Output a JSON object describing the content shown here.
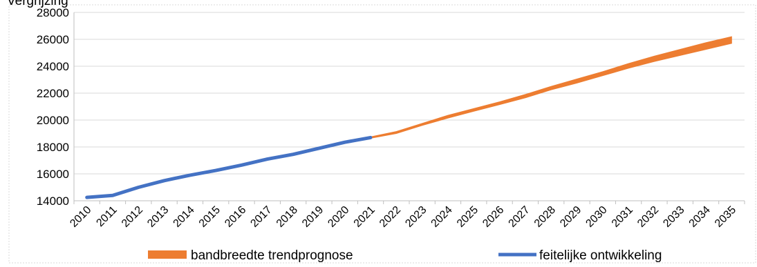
{
  "chart_data": {
    "type": "line",
    "title": "Vergrijzing",
    "xlabel": "",
    "ylabel": "",
    "ylim": [
      14000,
      28000
    ],
    "yticks": [
      "14000",
      "16000",
      "18000",
      "20000",
      "22000",
      "24000",
      "26000",
      "28000"
    ],
    "categories": [
      "2010",
      "2011",
      "2012",
      "2013",
      "2014",
      "2015",
      "2016",
      "2017",
      "2018",
      "2019",
      "2020",
      "2021",
      "2022",
      "2023",
      "2024",
      "2025",
      "2026",
      "2027",
      "2028",
      "2029",
      "2030",
      "2031",
      "2032",
      "2033",
      "2034",
      "2035"
    ],
    "grid": "horizontal",
    "legend_position": "bottom",
    "series": [
      {
        "name": "feitelijke ontwikkeling",
        "color": "#4472C4",
        "x": [
          2010,
          2011,
          2012,
          2013,
          2014,
          2015,
          2016,
          2017,
          2018,
          2019,
          2020,
          2021
        ],
        "values": [
          14250,
          14400,
          15000,
          15500,
          15900,
          16250,
          16650,
          17100,
          17450,
          17900,
          18350,
          18700
        ]
      },
      {
        "name": "bandbreedte trendprognose",
        "color": "#ED7D31",
        "x": [
          2021,
          2022,
          2023,
          2024,
          2025,
          2026,
          2027,
          2028,
          2029,
          2030,
          2031,
          2032,
          2033,
          2034,
          2035
        ],
        "lower": [
          18700,
          19050,
          19650,
          20200,
          20700,
          21200,
          21700,
          22300,
          22800,
          23350,
          23900,
          24400,
          24850,
          25300,
          25750
        ],
        "upper": [
          18700,
          19100,
          19700,
          20300,
          20800,
          21300,
          21850,
          22450,
          23000,
          23550,
          24150,
          24700,
          25200,
          25700,
          26150
        ]
      }
    ]
  }
}
